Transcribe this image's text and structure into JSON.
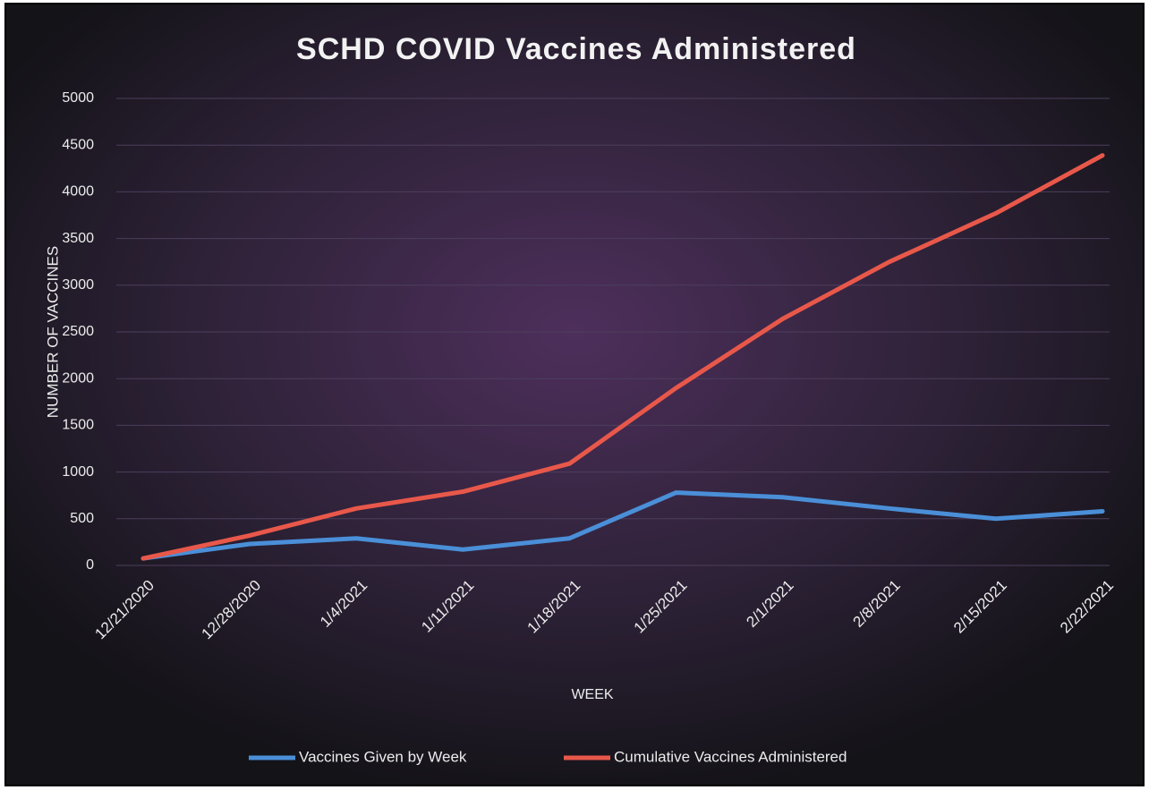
{
  "chart_data": {
    "type": "line",
    "title": "SCHD COVID Vaccines Administered",
    "x_label": "WEEK",
    "y_label": "NUMBER OF VACCINES",
    "categories": [
      "12/21/2020",
      "12/28/2020",
      "1/4/2021",
      "1/11/2021",
      "1/18/2021",
      "1/25/2021",
      "2/1/2021",
      "2/8/2021",
      "2/15/2021",
      "2/22/2021"
    ],
    "series": [
      {
        "name": "Vaccines Given by Week",
        "color": "#4a8fd8",
        "values": [
          75,
          230,
          290,
          170,
          290,
          780,
          730,
          610,
          500,
          580
        ]
      },
      {
        "name": "Cumulative Vaccines Administered",
        "color": "#e8584a",
        "values": [
          75,
          320,
          610,
          790,
          1090,
          1900,
          2640,
          3250,
          3770,
          4390
        ]
      }
    ],
    "ylim": [
      0,
      5000
    ],
    "yticks": [
      0,
      500,
      1000,
      1500,
      2000,
      2500,
      3000,
      3500,
      4000,
      4500,
      5000
    ],
    "grid": true,
    "legend": "bottom"
  }
}
